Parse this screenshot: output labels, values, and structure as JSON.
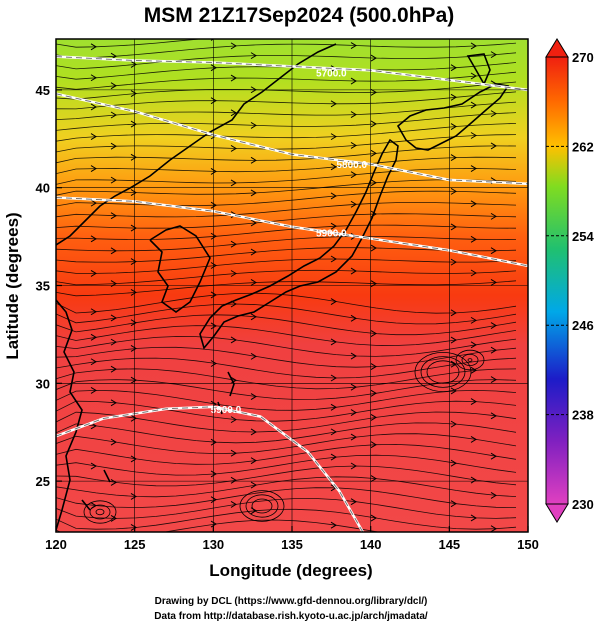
{
  "title": "MSM 21Z17Sep2024 (500.0hPa)",
  "xlabel": "Longitude (degrees)",
  "ylabel": "Latitude  (degrees)",
  "credits": [
    "Drawing by DCL (https://www.gfd-dennou.org/library/dcl/)",
    "Data from http://database.rish.kyoto-u.ac.jp/arch/jmadata/"
  ],
  "chart_data": {
    "type": "heatmap",
    "xlim": [
      120,
      150
    ],
    "ylim": [
      22.4,
      47.6
    ],
    "xticks": [
      {
        "value": 120,
        "label": "120"
      },
      {
        "value": 125,
        "label": "125"
      },
      {
        "value": 130,
        "label": "130"
      },
      {
        "value": 135,
        "label": "135"
      },
      {
        "value": 140,
        "label": "140"
      },
      {
        "value": 145,
        "label": "145"
      },
      {
        "value": 150,
        "label": "150"
      }
    ],
    "yticks": [
      {
        "value": 25,
        "label": "25"
      },
      {
        "value": 30,
        "label": "30"
      },
      {
        "value": 35,
        "label": "35"
      },
      {
        "value": 40,
        "label": "40"
      },
      {
        "value": 45,
        "label": "45"
      }
    ],
    "colorbar": {
      "min": 230,
      "max": 270,
      "ticks": [
        {
          "value": 270,
          "label": "270"
        },
        {
          "value": 262,
          "label": "262"
        },
        {
          "value": 254,
          "label": "254"
        },
        {
          "value": 246,
          "label": "246"
        },
        {
          "value": 238,
          "label": "238"
        },
        {
          "value": 230,
          "label": "230"
        }
      ],
      "colors": [
        "#e040c0",
        "#2020c0",
        "#00b0e0",
        "#20c060",
        "#90e020",
        "#ffb000",
        "#ff6000",
        "#f02010"
      ]
    },
    "contours": [
      {
        "label": "5700.0",
        "points": [
          [
            120,
            46.7
          ],
          [
            125,
            46.5
          ],
          [
            130,
            46.4
          ],
          [
            135,
            46.2
          ],
          [
            140,
            46.0
          ],
          [
            145,
            45.5
          ],
          [
            150,
            45.0
          ]
        ],
        "label_at": [
          137.5,
          45.9
        ]
      },
      {
        "label": "5800.0",
        "points": [
          [
            120,
            44.8
          ],
          [
            125,
            43.9
          ],
          [
            130,
            42.7
          ],
          [
            135,
            41.7
          ],
          [
            140,
            41.2
          ],
          [
            145,
            40.4
          ],
          [
            150,
            40.2
          ]
        ],
        "label_at": [
          138.8,
          41.2
        ]
      },
      {
        "label": "5900.0",
        "points": [
          [
            120,
            39.5
          ],
          [
            125,
            39.3
          ],
          [
            130,
            38.8
          ],
          [
            135,
            38.0
          ],
          [
            140,
            37.4
          ],
          [
            145,
            36.8
          ],
          [
            150,
            36.0
          ]
        ],
        "label_at": [
          137.5,
          37.7
        ]
      },
      {
        "label": "5900.0",
        "points": [
          [
            120,
            27.3
          ],
          [
            123,
            28.2
          ],
          [
            127,
            28.7
          ],
          [
            130,
            28.8
          ],
          [
            133,
            28.3
          ],
          [
            136,
            26.5
          ],
          [
            138,
            24.5
          ],
          [
            139.5,
            22.4
          ]
        ],
        "label_at": [
          130.8,
          28.7
        ]
      }
    ],
    "temperature_bands": [
      {
        "lat": 47.6,
        "value": 262
      },
      {
        "lat": 45,
        "value": 262.5
      },
      {
        "lat": 42,
        "value": 264
      },
      {
        "lat": 40,
        "value": 266
      },
      {
        "lat": 37,
        "value": 268
      },
      {
        "lat": 34,
        "value": 269
      },
      {
        "lat": 22.4,
        "value": 270
      }
    ]
  }
}
